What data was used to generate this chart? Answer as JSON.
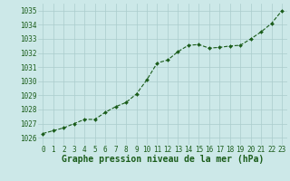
{
  "x": [
    0,
    1,
    2,
    3,
    4,
    5,
    6,
    7,
    8,
    9,
    10,
    11,
    12,
    13,
    14,
    15,
    16,
    17,
    18,
    19,
    20,
    21,
    22,
    23
  ],
  "y": [
    1026.3,
    1026.5,
    1026.7,
    1027.0,
    1027.3,
    1027.3,
    1027.8,
    1028.2,
    1028.5,
    1029.1,
    1030.1,
    1031.3,
    1031.5,
    1032.1,
    1032.55,
    1032.6,
    1032.35,
    1032.4,
    1032.5,
    1032.55,
    1033.0,
    1033.5,
    1034.1,
    1035.0
  ],
  "ylim": [
    1025.5,
    1035.5
  ],
  "yticks": [
    1026,
    1027,
    1028,
    1029,
    1030,
    1031,
    1032,
    1033,
    1034,
    1035
  ],
  "xticks": [
    0,
    1,
    2,
    3,
    4,
    5,
    6,
    7,
    8,
    9,
    10,
    11,
    12,
    13,
    14,
    15,
    16,
    17,
    18,
    19,
    20,
    21,
    22,
    23
  ],
  "line_color": "#1a5c1a",
  "marker_color": "#1a5c1a",
  "bg_plot": "#cce8e8",
  "bg_fig": "#cce8e8",
  "grid_color": "#aacccc",
  "xlabel": "Graphe pression niveau de la mer (hPa)",
  "xlabel_color": "#1a5c1a",
  "tick_color": "#1a5c1a",
  "label_fontsize": 5.5,
  "xlabel_fontsize": 7.0
}
